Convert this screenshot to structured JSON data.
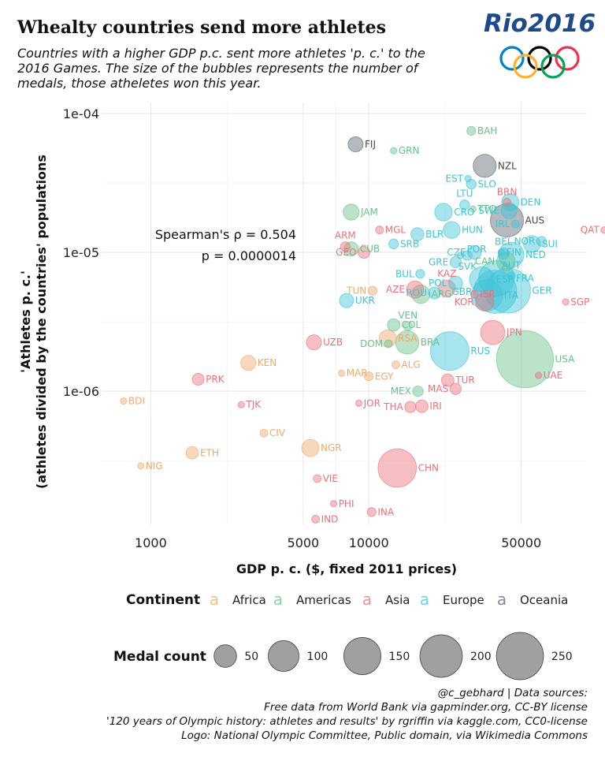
{
  "header": {
    "title": "Whealty countries send more athletes",
    "subtitle": "Countries with a higher GDP p.c. sent more athletes 'p. c.' to the 2016 Games. The size of the bubbles represents the number of medals, those atheletes won this year."
  },
  "logo": {
    "text": "Rio2016",
    "icon": "olympic-rings",
    "colors": [
      "#0081c8",
      "#fcb131",
      "#000000",
      "#00a651",
      "#ee334e"
    ],
    "text_color": "#1c4a8d"
  },
  "annotation": {
    "line1": "Spearman's ρ = 0.504",
    "line2": "p = 0.0000014"
  },
  "legend": {
    "continent_title": "Continent",
    "glyph": "a",
    "continents": [
      {
        "name": "Africa",
        "color": "#f0a86a"
      },
      {
        "name": "Americas",
        "color": "#66c28a"
      },
      {
        "name": "Asia",
        "color": "#e8727a"
      },
      {
        "name": "Europe",
        "color": "#3cc4d6"
      },
      {
        "name": "Oceania",
        "color": "#5d6570"
      }
    ],
    "size_title": "Medal count",
    "sizes": [
      50,
      100,
      150,
      200,
      250
    ]
  },
  "caption": {
    "lines": [
      "@c_gebhard | Data sources:",
      "Free data from World Bank via gapminder.org, CC-BY license",
      "'120 years of Olympic history: athletes and results' by rgriffin via kaggle.com, CC0-license",
      "Logo: National Olympic Committee, Public domain, via Wikimedia Commons"
    ]
  },
  "chart_data": {
    "type": "scatter",
    "xlabel": "GDP p. c. ($, fixed 2011 prices)",
    "ylabel_line1": "'Athletes p. c.'",
    "ylabel_line2": "(athletes divided by the countries' populations",
    "x_scale": "log",
    "y_scale": "log",
    "xlim": [
      600,
      100000
    ],
    "ylim": [
      1.1e-07,
      0.00012
    ],
    "x_ticks": [
      {
        "value": 1000,
        "label": "1000"
      },
      {
        "value": 5000,
        "label": "5000"
      },
      {
        "value": 10000,
        "label": "10000"
      },
      {
        "value": 50000,
        "label": "50000"
      }
    ],
    "y_ticks": [
      {
        "value": 1e-06,
        "label": "1e-06"
      },
      {
        "value": 1e-05,
        "label": "1e-05"
      },
      {
        "value": 0.0001,
        "label": "1e-04"
      }
    ],
    "grid": true,
    "points": [
      {
        "label": "BDI",
        "continent": "Africa",
        "gdp": 750,
        "apc": 8.5e-07,
        "medals": 1,
        "showLabel": true
      },
      {
        "label": "NIG",
        "continent": "Africa",
        "gdp": 900,
        "apc": 2.9e-07,
        "medals": 1,
        "showLabel": true
      },
      {
        "label": "ETH",
        "continent": "Africa",
        "gdp": 1550,
        "apc": 3.6e-07,
        "medals": 8
      },
      {
        "label": "KEN",
        "continent": "Africa",
        "gdp": 2800,
        "apc": 1.6e-06,
        "medals": 13
      },
      {
        "label": "CIV",
        "continent": "Africa",
        "gdp": 3300,
        "apc": 5e-07,
        "medals": 2
      },
      {
        "label": "NGR",
        "continent": "Africa",
        "gdp": 5400,
        "apc": 3.9e-07,
        "medals": 18
      },
      {
        "label": "MAR",
        "continent": "Africa",
        "gdp": 7500,
        "apc": 1.35e-06,
        "medals": 1
      },
      {
        "label": "EGY",
        "continent": "Africa",
        "gdp": 10000,
        "apc": 1.28e-06,
        "medals": 3
      },
      {
        "label": "ALG",
        "continent": "Africa",
        "gdp": 13300,
        "apc": 1.55e-06,
        "medals": 2
      },
      {
        "label": "TUN",
        "continent": "Africa",
        "gdp": 10400,
        "apc": 5.3e-06,
        "medals": 3
      },
      {
        "label": "RSA",
        "continent": "Africa",
        "gdp": 12200,
        "apc": 2.4e-06,
        "medals": 18
      },
      {
        "label": "PRK",
        "continent": "Asia",
        "gdp": 1650,
        "apc": 1.22e-06,
        "medals": 7
      },
      {
        "label": "TJK",
        "continent": "Asia",
        "gdp": 2600,
        "apc": 8e-07,
        "medals": 1
      },
      {
        "label": "VIE",
        "continent": "Asia",
        "gdp": 5800,
        "apc": 2.35e-07,
        "medals": 2
      },
      {
        "label": "PHI",
        "continent": "Asia",
        "gdp": 6900,
        "apc": 1.55e-07,
        "medals": 1
      },
      {
        "label": "IND",
        "continent": "Asia",
        "gdp": 5700,
        "apc": 1.2e-07,
        "medals": 2
      },
      {
        "label": "INA",
        "continent": "Asia",
        "gdp": 10300,
        "apc": 1.35e-07,
        "medals": 3
      },
      {
        "label": "JOR",
        "continent": "Asia",
        "gdp": 9000,
        "apc": 8.2e-07,
        "medals": 1
      },
      {
        "label": "UZB",
        "continent": "Asia",
        "gdp": 5600,
        "apc": 2.25e-06,
        "medals": 13
      },
      {
        "label": "CHN",
        "continent": "Asia",
        "gdp": 13500,
        "apc": 2.8e-07,
        "medals": 113
      },
      {
        "label": "THA",
        "continent": "Asia",
        "gdp": 15500,
        "apc": 7.7e-07,
        "medals": 6
      },
      {
        "label": "IRI",
        "continent": "Asia",
        "gdp": 17500,
        "apc": 7.8e-07,
        "medals": 8
      },
      {
        "label": "TUR",
        "continent": "Asia",
        "gdp": 23000,
        "apc": 1.2e-06,
        "medals": 8
      },
      {
        "label": "MAS",
        "continent": "Asia",
        "gdp": 25000,
        "apc": 1.04e-06,
        "medals": 6
      },
      {
        "label": "JPN",
        "continent": "Asia",
        "gdp": 37000,
        "apc": 2.65e-06,
        "medals": 41
      },
      {
        "label": "KOR",
        "continent": "Asia",
        "gdp": 34000,
        "apc": 4.4e-06,
        "medals": 21
      },
      {
        "label": "ISR",
        "continent": "Asia",
        "gdp": 30500,
        "apc": 5e-06,
        "medals": 2
      },
      {
        "label": "KAZ",
        "continent": "Asia",
        "gdp": 22800,
        "apc": 5.5e-06,
        "medals": 17
      },
      {
        "label": "AZE",
        "continent": "Asia",
        "gdp": 16300,
        "apc": 5.4e-06,
        "medals": 18
      },
      {
        "label": "ARM",
        "continent": "Asia",
        "gdp": 7800,
        "apc": 1.1e-05,
        "medals": 4
      },
      {
        "label": "GEO",
        "continent": "Asia",
        "gdp": 9500,
        "apc": 1e-05,
        "medals": 7
      },
      {
        "label": "MGL",
        "continent": "Asia",
        "gdp": 11200,
        "apc": 1.45e-05,
        "medals": 2
      },
      {
        "label": "QAT",
        "continent": "Asia",
        "gdp": 120000,
        "apc": 1.45e-05,
        "medals": 1
      },
      {
        "label": "SGP",
        "continent": "Asia",
        "gdp": 80000,
        "apc": 4.4e-06,
        "medals": 1
      },
      {
        "label": "UAE",
        "continent": "Asia",
        "gdp": 60000,
        "apc": 1.3e-06,
        "medals": 1
      },
      {
        "label": "BRN",
        "continent": "Asia",
        "gdp": 43000,
        "apc": 2.3e-05,
        "medals": 2
      },
      {
        "label": "JAM",
        "continent": "Americas",
        "gdp": 8300,
        "apc": 1.95e-05,
        "medals": 15
      },
      {
        "label": "CUB",
        "continent": "Americas",
        "gdp": 8300,
        "apc": 1.06e-05,
        "medals": 11
      },
      {
        "label": "GRN",
        "continent": "Americas",
        "gdp": 13000,
        "apc": 5.4e-05,
        "medals": 1
      },
      {
        "label": "BAH",
        "continent": "Americas",
        "gdp": 29500,
        "apc": 7.5e-05,
        "medals": 3
      },
      {
        "label": "TTO",
        "continent": "Americas",
        "gdp": 30000,
        "apc": 2.05e-05,
        "medals": 1
      },
      {
        "label": "USA",
        "continent": "Americas",
        "gdp": 52000,
        "apc": 1.7e-06,
        "medals": 264
      },
      {
        "label": "MEX",
        "continent": "Americas",
        "gdp": 16800,
        "apc": 1e-06,
        "medals": 5
      },
      {
        "label": "BRA",
        "continent": "Americas",
        "gdp": 15000,
        "apc": 2.25e-06,
        "medals": 37
      },
      {
        "label": "DOM",
        "continent": "Americas",
        "gdp": 12300,
        "apc": 2.2e-06,
        "medals": 2
      },
      {
        "label": "VEN",
        "continent": "Americas",
        "gdp": 15100,
        "apc": 2.95e-06,
        "medals": 3
      },
      {
        "label": "COL",
        "continent": "Americas",
        "gdp": 13000,
        "apc": 3e-06,
        "medals": 8
      },
      {
        "label": "ARG",
        "continent": "Americas",
        "gdp": 17300,
        "apc": 5e-06,
        "medals": 21
      },
      {
        "label": "GRE",
        "continent": "Europe",
        "gdp": 25000,
        "apc": 8.5e-06,
        "medals": 6
      },
      {
        "label": "CAN",
        "continent": "Americas",
        "gdp": 42500,
        "apc": 8.6e-06,
        "medals": 22
      },
      {
        "label": "FIJ",
        "continent": "Oceania",
        "gdp": 8700,
        "apc": 6e-05,
        "medals": 13
      },
      {
        "label": "NZL",
        "continent": "Oceania",
        "gdp": 34000,
        "apc": 4.2e-05,
        "medals": 36
      },
      {
        "label": "AUS",
        "continent": "Oceania",
        "gdp": 43000,
        "apc": 1.7e-05,
        "medals": 82
      },
      {
        "label": "UKR",
        "continent": "Europe",
        "gdp": 7900,
        "apc": 4.5e-06,
        "medals": 11
      },
      {
        "label": "SRB",
        "continent": "Europe",
        "gdp": 13000,
        "apc": 1.15e-05,
        "medals": 4
      },
      {
        "label": "BLR",
        "continent": "Europe",
        "gdp": 16700,
        "apc": 1.35e-05,
        "medals": 9
      },
      {
        "label": "BUL",
        "continent": "Europe",
        "gdp": 17200,
        "apc": 7e-06,
        "medals": 3
      },
      {
        "label": "ROU",
        "continent": "Europe",
        "gdp": 20000,
        "apc": 5.1e-06,
        "medals": 7
      },
      {
        "label": "HUN",
        "continent": "Europe",
        "gdp": 24000,
        "apc": 1.45e-05,
        "medals": 17
      },
      {
        "label": "CRO",
        "continent": "Europe",
        "gdp": 22000,
        "apc": 1.95e-05,
        "medals": 19
      },
      {
        "label": "LTU",
        "continent": "Europe",
        "gdp": 27500,
        "apc": 2.2e-05,
        "medals": 4
      },
      {
        "label": "EST",
        "continent": "Europe",
        "gdp": 28500,
        "apc": 3.4e-05,
        "medals": 1
      },
      {
        "label": "SLO",
        "continent": "Europe",
        "gdp": 29500,
        "apc": 3.1e-05,
        "medals": 4
      },
      {
        "label": "POR",
        "continent": "Europe",
        "gdp": 26300,
        "apc": 9.5e-06,
        "medals": 1
      },
      {
        "label": "SVK",
        "continent": "Europe",
        "gdp": 28300,
        "apc": 9.5e-06,
        "medals": 4
      },
      {
        "label": "CZE",
        "continent": "Europe",
        "gdp": 30500,
        "apc": 1e-05,
        "medals": 10
      },
      {
        "label": "POL",
        "continent": "Europe",
        "gdp": 25000,
        "apc": 6e-06,
        "medals": 11
      },
      {
        "label": "RUS",
        "continent": "Europe",
        "gdp": 23500,
        "apc": 1.95e-06,
        "medals": 115
      },
      {
        "label": "ITA",
        "continent": "Europe",
        "gdp": 34800,
        "apc": 4.9e-06,
        "medals": 71
      },
      {
        "label": "ESP",
        "continent": "Europe",
        "gdp": 33000,
        "apc": 6.4e-06,
        "medals": 43
      },
      {
        "label": "GBR",
        "continent": "Europe",
        "gdp": 38000,
        "apc": 5.2e-06,
        "medals": 145
      },
      {
        "label": "FRA",
        "continent": "Europe",
        "gdp": 38500,
        "apc": 6.5e-06,
        "medals": 96
      },
      {
        "label": "GER",
        "continent": "Europe",
        "gdp": 43500,
        "apc": 5.3e-06,
        "medals": 159
      },
      {
        "label": "BEL",
        "continent": "Europe",
        "gdp": 41500,
        "apc": 9.8e-06,
        "medals": 6
      },
      {
        "label": "NED",
        "continent": "Europe",
        "gdp": 45000,
        "apc": 9.6e-06,
        "medals": 45
      },
      {
        "label": "AUT",
        "continent": "Europe",
        "gdp": 45000,
        "apc": 6.8e-06,
        "medals": 2
      },
      {
        "label": "SUI",
        "continent": "Europe",
        "gdp": 56000,
        "apc": 1.15e-05,
        "medals": 17
      },
      {
        "label": "NOR",
        "continent": "Europe",
        "gdp": 62000,
        "apc": 1.2e-05,
        "medals": 4
      },
      {
        "label": "IRL",
        "continent": "Europe",
        "gdp": 47000,
        "apc": 1.6e-05,
        "medals": 2
      },
      {
        "label": "DEN",
        "continent": "Europe",
        "gdp": 44500,
        "apc": 2.3e-05,
        "medals": 18
      },
      {
        "label": "SWE",
        "continent": "Europe",
        "gdp": 44000,
        "apc": 2e-05,
        "medals": 15
      },
      {
        "label": "FIN",
        "continent": "Europe",
        "gdp": 40500,
        "apc": 1e-05,
        "medals": 1
      }
    ]
  }
}
